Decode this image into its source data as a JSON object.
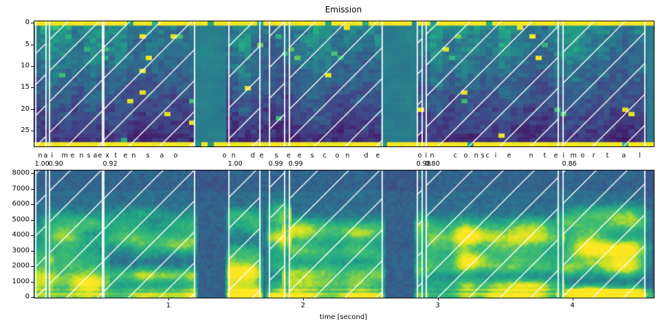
{
  "figure": {
    "title": "Emission",
    "xlabel": "time [second]"
  },
  "emission_plot": {
    "ytick_labels": [
      "0",
      "5",
      "10",
      "15",
      "20",
      "25"
    ]
  },
  "spectrogram_plot": {
    "ytick_labels": [
      "8000",
      "7000",
      "6000",
      "5000",
      "4000",
      "3000",
      "2000",
      "1000",
      "0"
    ],
    "xtick_labels": [
      "1",
      "2",
      "3",
      "4"
    ]
  },
  "colors": {
    "boundary_line": "#ffffff",
    "hatch_line": "#ffffff",
    "viridis": [
      "#440154",
      "#414487",
      "#2a788e",
      "#22a884",
      "#44bf70",
      "#bddf26",
      "#fde725"
    ]
  },
  "chart_data": {
    "type": "heatmap",
    "title": "Emission",
    "xlabel": "time [second]",
    "xlim": [
      0,
      4.6
    ],
    "xticks": [
      1,
      2,
      3,
      4
    ],
    "grid": false,
    "plots": [
      {
        "name": "emission",
        "kind": "token-probability heatmap",
        "colormap": "viridis",
        "yticks": [
          0,
          5,
          10,
          15,
          20,
          25
        ],
        "rows": 29
      },
      {
        "name": "spectrogram",
        "kind": "spectrogram",
        "colormap": "viridis",
        "yticks": [
          8000,
          7000,
          6000,
          5000,
          4000,
          3000,
          2000,
          1000,
          0
        ],
        "ylim": [
          0,
          8200
        ]
      }
    ],
    "transcript": "na imensa extensao onde se esconde o inconsciente imortal",
    "silences": [
      [
        1.192,
        1.442
      ],
      [
        2.585,
        2.841
      ]
    ],
    "segments": [
      {
        "word": "na",
        "score": "1.00",
        "start": 0.008,
        "end": 0.089,
        "chars": [
          {
            "c": "n",
            "t": 0.033
          },
          {
            "c": "a",
            "t": 0.074
          }
        ]
      },
      {
        "word": "imensa",
        "score": "0.90",
        "start": 0.11,
        "end": 0.508,
        "chars": [
          {
            "c": "i",
            "t": 0.13
          },
          {
            "c": "m",
            "t": 0.207
          },
          {
            "c": "e",
            "t": 0.273
          },
          {
            "c": "n",
            "t": 0.339
          },
          {
            "c": "s",
            "t": 0.396
          },
          {
            "c": "a",
            "t": 0.442
          }
        ]
      },
      {
        "word": "extensao",
        "score": "0.92",
        "start": 0.513,
        "end": 1.192,
        "chars": [
          {
            "c": "e",
            "t": 0.477
          },
          {
            "c": "x",
            "t": 0.533
          },
          {
            "c": "t",
            "t": 0.6
          },
          {
            "c": "e",
            "t": 0.666
          },
          {
            "c": "n",
            "t": 0.727
          },
          {
            "c": "s",
            "t": 0.835
          },
          {
            "c": "a",
            "t": 0.937
          },
          {
            "c": "o",
            "t": 1.039
          }
        ]
      },
      {
        "word": "onde",
        "score": "1.00",
        "start": 1.442,
        "end": 1.677,
        "chars": [
          {
            "c": "o",
            "t": 1.401
          },
          {
            "c": "n",
            "t": 1.468
          },
          {
            "c": "d",
            "t": 1.611
          },
          {
            "c": "e",
            "t": 1.677
          }
        ]
      },
      {
        "word": "se",
        "score": "0.99",
        "start": 1.743,
        "end": 1.861,
        "chars": [
          {
            "c": "s",
            "t": 1.789
          },
          {
            "c": "e",
            "t": 1.878
          }
        ]
      },
      {
        "word": "esconde",
        "score": "0.99",
        "start": 1.891,
        "end": 2.585,
        "chars": [
          {
            "c": "e",
            "t": 1.958
          },
          {
            "c": "s",
            "t": 2.055
          },
          {
            "c": "c",
            "t": 2.147
          },
          {
            "c": "o",
            "t": 2.239
          },
          {
            "c": "n",
            "t": 2.315
          },
          {
            "c": "d",
            "t": 2.453
          },
          {
            "c": "e",
            "t": 2.54
          }
        ]
      },
      {
        "word": "o",
        "score": "0.98",
        "start": 2.841,
        "end": 2.882,
        "chars": [
          {
            "c": "o",
            "t": 2.851
          }
        ]
      },
      {
        "word": "inconsciente",
        "score": "0.80",
        "start": 2.907,
        "end": 3.892,
        "chars": [
          {
            "c": "i",
            "t": 2.907
          },
          {
            "c": "n",
            "t": 2.943
          },
          {
            "c": "c",
            "t": 3.117
          },
          {
            "c": "o",
            "t": 3.193
          },
          {
            "c": "n",
            "t": 3.27
          },
          {
            "c": "s",
            "t": 3.321
          },
          {
            "c": "c",
            "t": 3.356
          },
          {
            "c": "i",
            "t": 3.423
          },
          {
            "c": "e",
            "t": 3.515
          },
          {
            "c": "n",
            "t": 3.678
          },
          {
            "c": "t",
            "t": 3.785
          },
          {
            "c": "e",
            "t": 3.862
          }
        ]
      },
      {
        "word": "imortal",
        "score": "0.86",
        "start": 3.923,
        "end": 4.535,
        "chars": [
          {
            "c": "i",
            "t": 3.928
          },
          {
            "c": "m",
            "t": 3.984
          },
          {
            "c": "o",
            "t": 4.061
          },
          {
            "c": "r",
            "t": 4.148
          },
          {
            "c": "t",
            "t": 4.25
          },
          {
            "c": "a",
            "t": 4.367
          },
          {
            "c": "l",
            "t": 4.494
          }
        ]
      }
    ]
  }
}
